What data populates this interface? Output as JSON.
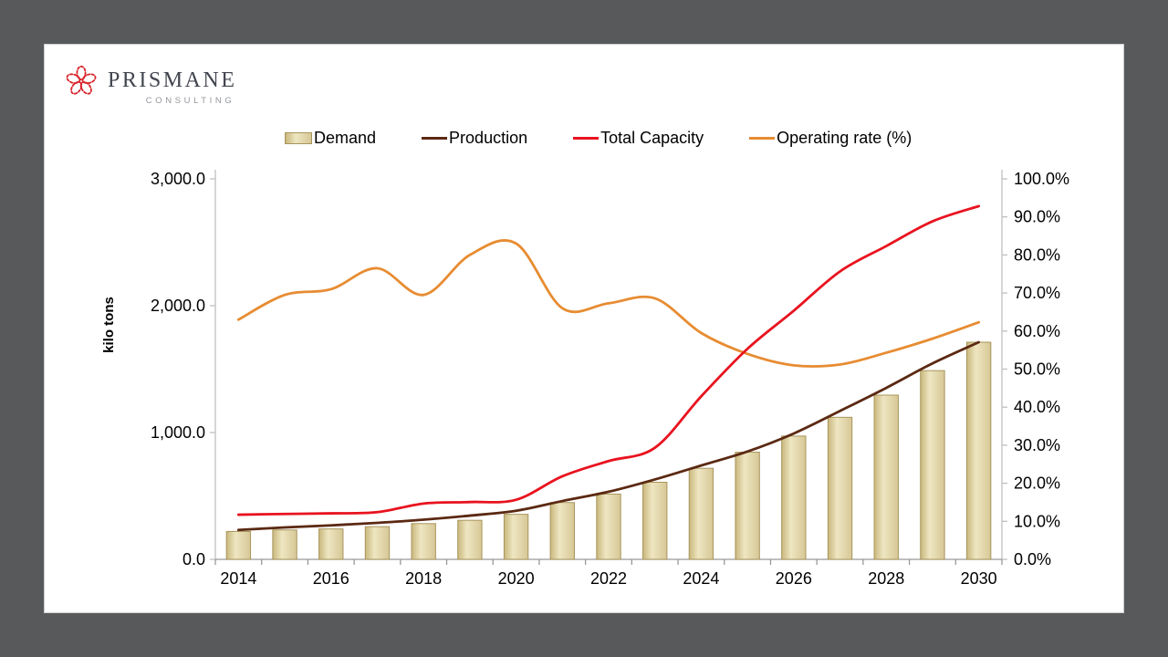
{
  "brand": {
    "name": "PRISMANE",
    "tagline": "CONSULTING",
    "logo_color": "#d8232a",
    "name_color": "#42454e",
    "tagline_color": "#94979c"
  },
  "chart_data": {
    "type": "combo-bar-line",
    "title": "",
    "x": [
      2014,
      2015,
      2016,
      2017,
      2018,
      2019,
      2020,
      2021,
      2022,
      2023,
      2024,
      2025,
      2026,
      2027,
      2028,
      2029,
      2030
    ],
    "x_label_every": 2,
    "grid": false,
    "legend_position": "top",
    "left_axis": {
      "title": "kilo tons",
      "min": 0,
      "max": 3000,
      "tick_values": [
        0,
        1000,
        2000,
        3000
      ],
      "tick_labels": [
        "0.0",
        "1,000.0",
        "2,000.0",
        "3,000.0"
      ]
    },
    "right_axis": {
      "min": 0,
      "max": 100,
      "tick_values": [
        0,
        10,
        20,
        30,
        40,
        50,
        60,
        70,
        80,
        90,
        100
      ],
      "tick_labels": [
        "0.0%",
        "10.0%",
        "20.0%",
        "30.0%",
        "40.0%",
        "50.0%",
        "60.0%",
        "70.0%",
        "80.0%",
        "90.0%",
        "100.0%"
      ]
    },
    "series": [
      {
        "name": "Demand",
        "type": "bar",
        "axis": "left",
        "fill_gradient": [
          "#c9b77c",
          "#eee6c2",
          "#d6c795"
        ],
        "edge": "#a8955c",
        "values": [
          220,
          232,
          240,
          258,
          282,
          308,
          355,
          448,
          515,
          608,
          718,
          845,
          972,
          1120,
          1295,
          1488,
          1712
        ]
      },
      {
        "name": "Production",
        "type": "line",
        "axis": "left",
        "color": "#5b2912",
        "values": [
          232,
          252,
          268,
          288,
          313,
          345,
          383,
          460,
          533,
          630,
          740,
          850,
          992,
          1170,
          1352,
          1545,
          1712
        ]
      },
      {
        "name": "Total Capacity",
        "type": "line",
        "axis": "left",
        "color": "#e8131f",
        "values": [
          352,
          358,
          363,
          372,
          440,
          452,
          470,
          655,
          775,
          880,
          1285,
          1660,
          1960,
          2270,
          2470,
          2665,
          2785
        ]
      },
      {
        "name": "Operating rate (%)",
        "type": "line",
        "axis": "right",
        "color": "#e78c32",
        "values": [
          63.0,
          69.5,
          71.0,
          76.5,
          69.5,
          80.0,
          83.0,
          66.0,
          67.3,
          68.6,
          59.5,
          54.0,
          51.0,
          51.2,
          54.3,
          58.0,
          62.3
        ]
      }
    ],
    "axis_line_color": "#bfbfbf",
    "x_axis_line_color": "#999999",
    "tick_text_color": "#000000"
  }
}
